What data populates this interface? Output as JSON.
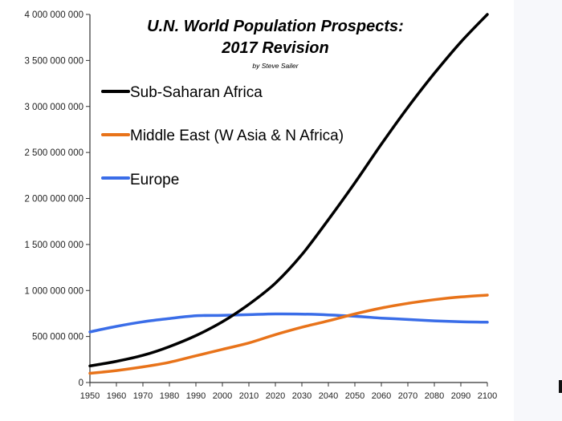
{
  "chart_data": {
    "type": "line",
    "title_line1": "U.N. World Population Prospects:",
    "title_line2": "2017 Revision",
    "subtitle": "by Steve Sailer",
    "xlabel": "",
    "ylabel": "",
    "xlim": [
      1950,
      2100
    ],
    "ylim": [
      0,
      4000000000
    ],
    "x_ticks": [
      1950,
      1960,
      1970,
      1980,
      1990,
      2000,
      2010,
      2020,
      2030,
      2040,
      2050,
      2060,
      2070,
      2080,
      2090,
      2100
    ],
    "y_ticks": [
      0,
      500000000,
      1000000000,
      1500000000,
      2000000000,
      2500000000,
      3000000000,
      3500000000,
      4000000000
    ],
    "y_tick_labels": [
      "0",
      "500 000 000",
      "1 000 000 000",
      "1 500 000 000",
      "2 000 000 000",
      "2 500 000 000",
      "3 000 000 000",
      "3 500 000 000",
      "4 000 000 000"
    ],
    "grid": false,
    "legend_position": "top-left",
    "x": [
      1950,
      1960,
      1970,
      1980,
      1990,
      2000,
      2010,
      2020,
      2030,
      2040,
      2050,
      2060,
      2070,
      2080,
      2090,
      2100
    ],
    "series": [
      {
        "name": "Sub-Saharan Africa",
        "color": "#000000",
        "values": [
          180000000,
          230000000,
          295000000,
          390000000,
          510000000,
          660000000,
          850000000,
          1080000000,
          1390000000,
          1770000000,
          2170000000,
          2590000000,
          2990000000,
          3360000000,
          3700000000,
          4000000000
        ]
      },
      {
        "name": "Middle East (W Asia & N Africa)",
        "color": "#e8731a",
        "values": [
          100000000,
          130000000,
          170000000,
          220000000,
          290000000,
          360000000,
          430000000,
          520000000,
          600000000,
          670000000,
          745000000,
          810000000,
          860000000,
          900000000,
          930000000,
          950000000
        ]
      },
      {
        "name": "Europe",
        "color": "#3a6de8",
        "values": [
          550000000,
          610000000,
          660000000,
          695000000,
          725000000,
          730000000,
          737000000,
          745000000,
          743000000,
          735000000,
          720000000,
          700000000,
          685000000,
          670000000,
          660000000,
          655000000
        ]
      }
    ]
  }
}
